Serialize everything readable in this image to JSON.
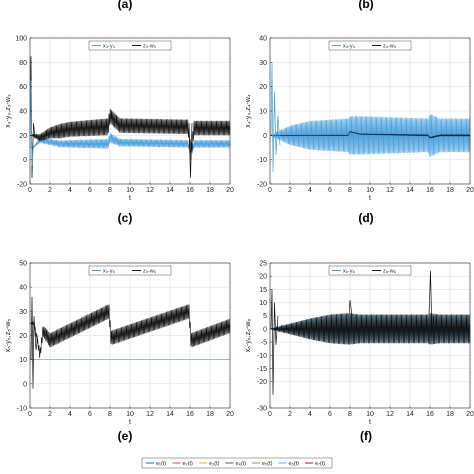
{
  "panel_labels": [
    "(a)",
    "(b)",
    "(c)",
    "(d)",
    "(e)",
    "(f)"
  ],
  "bottom_legend": {
    "entries": [
      {
        "label": "e₁(t)",
        "color": "#0072BD"
      },
      {
        "label": "e₂(t)",
        "color": "#D95319"
      },
      {
        "label": "e₃(t)",
        "color": "#EDB120"
      },
      {
        "label": "e₄(t)",
        "color": "#7E2F8E"
      },
      {
        "label": "e₅(t)",
        "color": "#77AC30"
      },
      {
        "label": "e₆(t)",
        "color": "#4DBEEE"
      },
      {
        "label": "e₇(t)",
        "color": "#A2142F"
      }
    ]
  },
  "chart_data": [
    {
      "type": "line",
      "panel": "(c)",
      "xlabel": "t",
      "ylabel": "x₃-y₃,z₃-w₃",
      "xlim": [
        0,
        20
      ],
      "ylim": [
        -20,
        100
      ],
      "xticks": [
        "0",
        "2",
        "4",
        "6",
        "8",
        "10",
        "12",
        "14",
        "16",
        "18",
        "20"
      ],
      "yticks": [
        "-20",
        "0",
        "20",
        "40",
        "60",
        "80",
        "100"
      ],
      "grid": true,
      "legend_position": "top-center",
      "series": [
        {
          "name": "x₃-y₃",
          "color": "#4a9fdc",
          "mean": [
            [
              0.3,
              10
            ],
            [
              1,
              16
            ],
            [
              3,
              13
            ],
            [
              7.8,
              13
            ],
            [
              8,
              18
            ],
            [
              9,
              14
            ],
            [
              15.8,
              13
            ],
            [
              16.1,
              5
            ],
            [
              16.4,
              13
            ],
            [
              20,
              13
            ]
          ],
          "amp": [
            [
              0,
              0
            ],
            [
              1,
              2
            ],
            [
              4,
              3
            ],
            [
              8,
              4
            ],
            [
              9,
              3
            ],
            [
              20,
              3
            ]
          ]
        },
        {
          "name": "z₃-w₃",
          "color": "#111111",
          "mean": [
            [
              0.3,
              20
            ],
            [
              1,
              18
            ],
            [
              2,
              22
            ],
            [
              4,
              25
            ],
            [
              7.8,
              27
            ],
            [
              8,
              36
            ],
            [
              9,
              28
            ],
            [
              15.8,
              27
            ],
            [
              16.1,
              5
            ],
            [
              16.4,
              26
            ],
            [
              20,
              26
            ]
          ],
          "amp": [
            [
              0,
              0
            ],
            [
              1,
              3
            ],
            [
              3,
              6
            ],
            [
              7.8,
              7
            ],
            [
              8,
              6
            ],
            [
              9,
              6
            ],
            [
              20,
              6
            ]
          ]
        }
      ],
      "spikes": [
        {
          "series": 1,
          "points": [
            [
              0,
              20
            ],
            [
              0.1,
              85
            ],
            [
              0.2,
              -15
            ],
            [
              0.35,
              30
            ],
            [
              0.5,
              18
            ]
          ]
        },
        {
          "series": 0,
          "points": [
            [
              0,
              10
            ],
            [
              0.1,
              65
            ],
            [
              0.2,
              -5
            ],
            [
              0.35,
              12
            ]
          ]
        },
        {
          "series": 1,
          "points": [
            [
              15.9,
              30
            ],
            [
              16.05,
              -15
            ],
            [
              16.2,
              30
            ]
          ]
        }
      ]
    },
    {
      "type": "line",
      "panel": "(d)",
      "xlabel": "t",
      "ylabel": "x₄-y₄,z₄-w₄",
      "xlim": [
        0,
        20
      ],
      "ylim": [
        -20,
        40
      ],
      "xticks": [
        "0",
        "2",
        "4",
        "6",
        "8",
        "10",
        "12",
        "14",
        "16",
        "18",
        "20"
      ],
      "yticks": [
        "-20",
        "-10",
        "0",
        "10",
        "20",
        "30",
        "40"
      ],
      "grid": true,
      "legend_position": "top-center",
      "series": [
        {
          "name": "x₄-y₄",
          "color": "#4a9fdc",
          "mean": [
            [
              0,
              0
            ],
            [
              20,
              0
            ]
          ],
          "amp": [
            [
              0,
              0
            ],
            [
              1,
              2
            ],
            [
              2,
              4
            ],
            [
              4,
              6
            ],
            [
              7.8,
              7
            ],
            [
              8,
              8
            ],
            [
              9,
              8
            ],
            [
              15.8,
              7
            ],
            [
              16,
              9
            ],
            [
              17,
              7
            ],
            [
              20,
              7
            ]
          ]
        },
        {
          "name": "z₄-w₄",
          "color": "#111111",
          "mean": [
            [
              0,
              0
            ],
            [
              7.8,
              0
            ],
            [
              8,
              1.5
            ],
            [
              9,
              0.5
            ],
            [
              15.8,
              0
            ],
            [
              16,
              -1
            ],
            [
              17,
              0
            ],
            [
              20,
              0
            ]
          ],
          "amp": [
            [
              0,
              0
            ],
            [
              20,
              0.3
            ]
          ]
        }
      ],
      "spikes": [
        {
          "series": 0,
          "points": [
            [
              0.1,
              0
            ],
            [
              0.2,
              30
            ],
            [
              0.3,
              -15
            ],
            [
              0.45,
              18
            ],
            [
              0.6,
              -8
            ],
            [
              0.8,
              8
            ],
            [
              1,
              -4
            ]
          ]
        }
      ]
    },
    {
      "type": "line",
      "panel": "(e)",
      "xlabel": "t",
      "ylabel": "x₅-y₅,z₅-w₅",
      "xlim": [
        0,
        20
      ],
      "ylim": [
        -10,
        50
      ],
      "xticks": [
        "0",
        "2",
        "4",
        "6",
        "8",
        "10",
        "12",
        "14",
        "16",
        "18",
        "20"
      ],
      "yticks": [
        "-10",
        "0",
        "10",
        "20",
        "30",
        "40",
        "50"
      ],
      "grid": true,
      "legend_position": "top-center",
      "series": [
        {
          "name": "x₅-y₅",
          "color": "#4a9fdc",
          "mean": [
            [
              0,
              10
            ],
            [
              20,
              10
            ]
          ],
          "amp": [
            [
              0,
              0
            ],
            [
              20,
              0
            ]
          ]
        },
        {
          "name": "z₅-w₅",
          "color": "#111111",
          "mean": [
            [
              0.4,
              25
            ],
            [
              1,
              12
            ],
            [
              1.3,
              22
            ],
            [
              2,
              18
            ],
            [
              7.9,
              30
            ],
            [
              8.1,
              19
            ],
            [
              15.9,
              30
            ],
            [
              16.1,
              18
            ],
            [
              20,
              24
            ]
          ],
          "amp": [
            [
              0,
              0
            ],
            [
              1,
              2
            ],
            [
              2,
              3
            ],
            [
              20,
              3
            ]
          ]
        }
      ],
      "spikes": [
        {
          "series": 1,
          "points": [
            [
              0.1,
              10
            ],
            [
              0.2,
              36
            ],
            [
              0.3,
              -2
            ],
            [
              0.4,
              28
            ],
            [
              0.6,
              14
            ],
            [
              0.8,
              20
            ]
          ]
        }
      ]
    },
    {
      "type": "line",
      "panel": "(f)",
      "xlabel": "t",
      "ylabel": "x₆-y₆,z₆-w₆",
      "xlim": [
        0,
        20
      ],
      "ylim": [
        -30,
        25
      ],
      "xticks": [
        "0",
        "2",
        "4",
        "6",
        "8",
        "10",
        "12",
        "14",
        "16",
        "18",
        "20"
      ],
      "yticks": [
        "-30",
        "-20",
        "-15",
        "-10",
        "-5",
        "0",
        "5",
        "10",
        "15",
        "20",
        "25"
      ],
      "grid": true,
      "legend_position": "top-center",
      "series": [
        {
          "name": "x₆-y₆",
          "color": "#4a9fdc",
          "mean": [
            [
              0,
              0
            ],
            [
              20,
              0
            ]
          ],
          "amp": [
            [
              0,
              0
            ],
            [
              1,
              1
            ],
            [
              2,
              2
            ],
            [
              4,
              4
            ],
            [
              6,
              5.5
            ],
            [
              7.8,
              6
            ],
            [
              8,
              6
            ],
            [
              9,
              5.5
            ],
            [
              15.8,
              5.5
            ],
            [
              16,
              6
            ],
            [
              17,
              5.5
            ],
            [
              20,
              5.5
            ]
          ]
        },
        {
          "name": "z₆-w₆",
          "color": "#111111",
          "mean": [
            [
              0,
              0
            ],
            [
              20,
              0
            ]
          ],
          "amp": [
            [
              0,
              0
            ],
            [
              1,
              1
            ],
            [
              2,
              2
            ],
            [
              4,
              4
            ],
            [
              6,
              5.5
            ],
            [
              7.8,
              6
            ],
            [
              8,
              6
            ],
            [
              9,
              5.5
            ],
            [
              15.8,
              5.5
            ],
            [
              16,
              6
            ],
            [
              17,
              5.5
            ],
            [
              20,
              5.5
            ]
          ]
        }
      ],
      "spikes": [
        {
          "series": 1,
          "points": [
            [
              0.1,
              0
            ],
            [
              0.2,
              15
            ],
            [
              0.3,
              -25
            ],
            [
              0.45,
              10
            ],
            [
              0.6,
              -6
            ],
            [
              0.8,
              5
            ]
          ]
        },
        {
          "series": 1,
          "points": [
            [
              7.9,
              5
            ],
            [
              8.0,
              11
            ],
            [
              8.2,
              5
            ]
          ]
        },
        {
          "series": 1,
          "points": [
            [
              15.9,
              5
            ],
            [
              16.05,
              22
            ],
            [
              16.2,
              -3
            ],
            [
              16.35,
              5
            ]
          ]
        }
      ]
    }
  ]
}
